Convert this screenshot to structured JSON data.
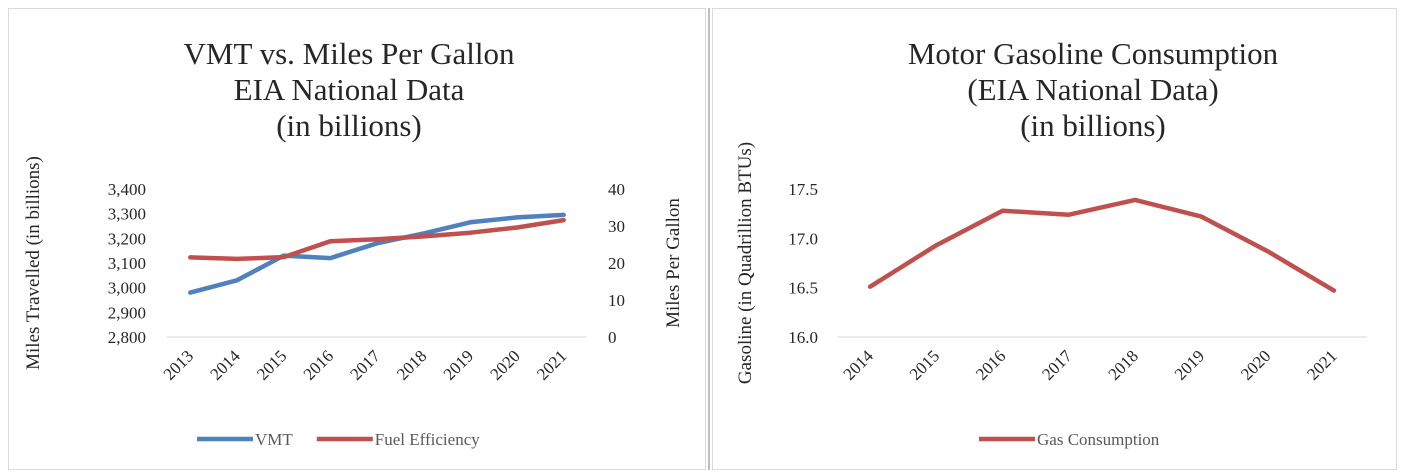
{
  "chart_data": [
    {
      "type": "line",
      "title": [
        "VMT vs. Miles Per Gallon",
        "EIA National Data",
        "(in billions)"
      ],
      "categories": [
        "2013",
        "2014",
        "2015",
        "2016",
        "2017",
        "2018",
        "2019",
        "2020",
        "2021"
      ],
      "series": [
        {
          "name": "VMT",
          "axis": "left",
          "color": "#4f81bd",
          "values": [
            2980,
            3030,
            3130,
            3120,
            3180,
            3220,
            3265,
            3285,
            3295
          ]
        },
        {
          "name": "Fuel Efficiency",
          "axis": "right",
          "color": "#c0504d",
          "values": [
            21.5,
            21.1,
            21.6,
            25.9,
            26.4,
            27.2,
            28.2,
            29.6,
            31.6
          ]
        }
      ],
      "ylabel": "Miles Travelled (in billions)",
      "ylim": [
        2800,
        3400
      ],
      "yticks": [
        "2,800",
        "2,900",
        "3,000",
        "3,100",
        "3,200",
        "3,300",
        "3,400"
      ],
      "y2label": "Miles Per Gallon",
      "y2lim": [
        0,
        40
      ],
      "y2ticks": [
        "0",
        "10",
        "20",
        "30",
        "40"
      ],
      "grid": false,
      "legend": "bottom"
    },
    {
      "type": "line",
      "title": [
        "Motor Gasoline Consumption",
        "(EIA National Data)",
        "(in billions)"
      ],
      "categories": [
        "2014",
        "2015",
        "2016",
        "2017",
        "2018",
        "2019",
        "2020",
        "2021"
      ],
      "series": [
        {
          "name": "Gas Consumption",
          "color": "#c0504d",
          "values": [
            16.51,
            16.93,
            17.28,
            17.24,
            17.39,
            17.22,
            16.87,
            16.47
          ]
        }
      ],
      "ylabel": "Gasoline (in Quadrillion BTUs)",
      "ylim": [
        16.0,
        17.5
      ],
      "yticks": [
        "16.0",
        "16.5",
        "17.0",
        "17.5"
      ],
      "grid": false,
      "legend": "bottom"
    }
  ]
}
